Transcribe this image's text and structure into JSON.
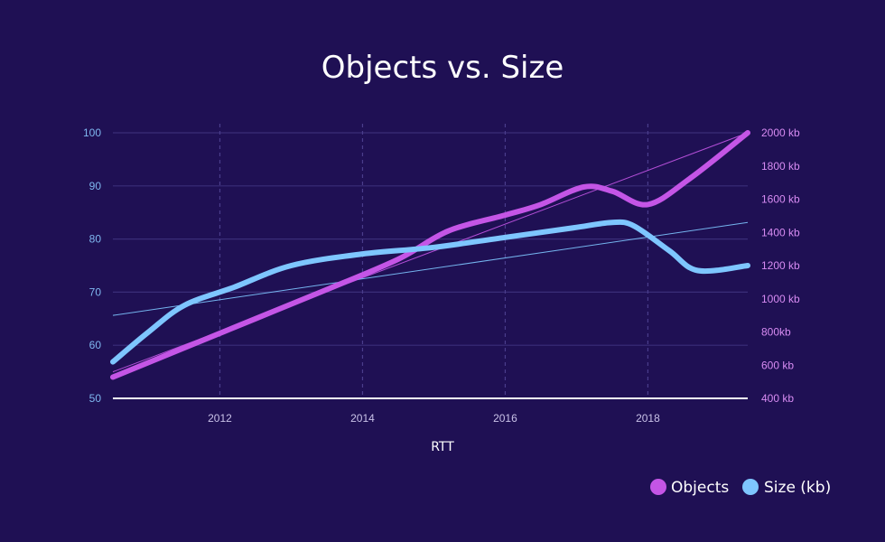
{
  "colors": {
    "background": "#1f1054",
    "objects": "#c455e6",
    "size": "#7ec6ff",
    "grid": "#3a2d78",
    "axis": "#ffffff"
  },
  "chart_data": {
    "type": "line",
    "title": "Objects vs. Size",
    "xlabel": "RTT",
    "x_ticks": [
      "2012",
      "2014",
      "2016",
      "2018"
    ],
    "x_tick_values": [
      2012,
      2014,
      2016,
      2018
    ],
    "xlim": [
      2010.5,
      2019.4
    ],
    "y_left": {
      "ticks": [
        "100",
        "90",
        "80",
        "70",
        "60",
        "50"
      ],
      "tick_values": [
        100,
        90,
        80,
        70,
        60,
        50
      ],
      "ylim": [
        50,
        100
      ]
    },
    "y_right": {
      "ticks": [
        "2000 kb",
        "1800 kb",
        "1600 kb",
        "1400 kb",
        "1200 kb",
        "1000 kb",
        "800kb",
        "600 kb",
        "400 kb"
      ],
      "tick_values": [
        2000,
        1800,
        1600,
        1400,
        1200,
        1000,
        800,
        600,
        400
      ],
      "ylim": [
        400,
        2000
      ]
    },
    "grid": true,
    "legend_position": "bottom-right",
    "series": [
      {
        "name": "Objects",
        "axis": "left",
        "color": "#c455e6",
        "x": [
          2010.5,
          2011.5,
          2012.5,
          2013.5,
          2014.5,
          2015.2,
          2016.0,
          2016.5,
          2017.1,
          2017.5,
          2018.0,
          2018.6,
          2019.4
        ],
        "y": [
          54.0,
          59.5,
          65.0,
          70.5,
          76.2,
          81.5,
          84.5,
          86.5,
          89.8,
          89.0,
          86.5,
          91.5,
          100.0
        ],
        "trend": [
          55.0,
          100.0
        ]
      },
      {
        "name": "Size (kb)",
        "axis": "right",
        "color": "#7ec6ff",
        "x": [
          2010.5,
          2011.0,
          2011.5,
          2012.2,
          2013.0,
          2014.0,
          2015.0,
          2016.0,
          2017.0,
          2017.5,
          2017.8,
          2018.3,
          2018.7,
          2019.4
        ],
        "y": [
          620,
          800,
          960,
          1070,
          1200,
          1270,
          1310,
          1370,
          1430,
          1460,
          1440,
          1290,
          1170,
          1200
        ],
        "trend": [
          900,
          1460
        ]
      }
    ]
  }
}
